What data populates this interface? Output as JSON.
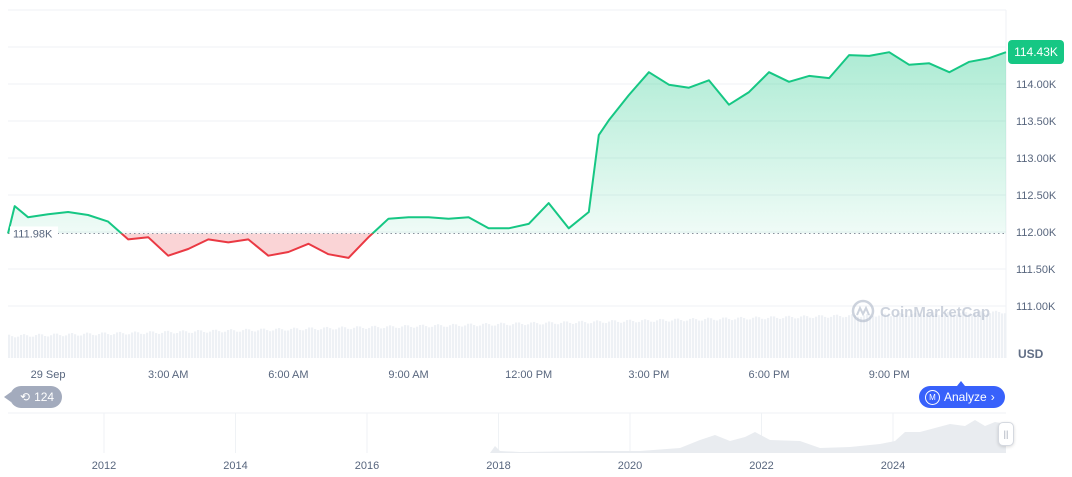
{
  "chart_data": {
    "type": "area",
    "currency_label": "USD",
    "current_price_label": "114.43K",
    "baseline_label": "111.98K",
    "baseline": 111.98,
    "ylim": [
      110.7,
      114.85
    ],
    "y_ticks": [
      "111.00K",
      "111.50K",
      "112.00K",
      "112.50K",
      "113.00K",
      "113.50K",
      "114.00K"
    ],
    "y_tick_values": [
      111.0,
      111.5,
      112.0,
      112.5,
      113.0,
      113.5,
      114.0
    ],
    "x_ticks": [
      "29 Sep",
      "3:00 AM",
      "6:00 AM",
      "9:00 AM",
      "12:00 PM",
      "3:00 PM",
      "6:00 PM",
      "9:00 PM"
    ],
    "x_tick_times": [
      "29 Sep 00:00",
      "29 Sep 03:00",
      "29 Sep 06:00",
      "29 Sep 09:00",
      "29 Sep 12:00",
      "29 Sep 15:00",
      "29 Sep 18:00",
      "29 Sep 21:00"
    ],
    "x_range": [
      "28 Sep 23:00",
      "29 Sep 23:55"
    ],
    "series": [
      {
        "points": [
          [
            "28 Sep 23:00",
            111.98
          ],
          [
            "28 Sep 23:10",
            112.35
          ],
          [
            "28 Sep 23:30",
            112.2
          ],
          [
            "29 Sep 00:00",
            112.24
          ],
          [
            "29 Sep 00:30",
            112.27
          ],
          [
            "29 Sep 01:00",
            112.23
          ],
          [
            "29 Sep 01:30",
            112.14
          ],
          [
            "29 Sep 02:00",
            111.9
          ],
          [
            "29 Sep 02:30",
            111.93
          ],
          [
            "29 Sep 03:00",
            111.68
          ],
          [
            "29 Sep 03:30",
            111.77
          ],
          [
            "29 Sep 04:00",
            111.9
          ],
          [
            "29 Sep 04:30",
            111.86
          ],
          [
            "29 Sep 05:00",
            111.9
          ],
          [
            "29 Sep 05:30",
            111.68
          ],
          [
            "29 Sep 06:00",
            111.73
          ],
          [
            "29 Sep 06:30",
            111.84
          ],
          [
            "29 Sep 07:00",
            111.7
          ],
          [
            "29 Sep 07:30",
            111.65
          ],
          [
            "29 Sep 08:00",
            111.93
          ],
          [
            "29 Sep 08:30",
            112.18
          ],
          [
            "29 Sep 09:00",
            112.2
          ],
          [
            "29 Sep 09:30",
            112.2
          ],
          [
            "29 Sep 10:00",
            112.18
          ],
          [
            "29 Sep 10:30",
            112.2
          ],
          [
            "29 Sep 11:00",
            112.05
          ],
          [
            "29 Sep 11:30",
            112.05
          ],
          [
            "29 Sep 12:00",
            112.11
          ],
          [
            "29 Sep 12:30",
            112.39
          ],
          [
            "29 Sep 13:00",
            112.05
          ],
          [
            "29 Sep 13:30",
            112.27
          ],
          [
            "29 Sep 13:45",
            113.31
          ],
          [
            "29 Sep 14:00",
            113.51
          ],
          [
            "29 Sep 14:30",
            113.85
          ],
          [
            "29 Sep 15:00",
            114.16
          ],
          [
            "29 Sep 15:30",
            113.99
          ],
          [
            "29 Sep 16:00",
            113.95
          ],
          [
            "29 Sep 16:30",
            114.05
          ],
          [
            "29 Sep 17:00",
            113.72
          ],
          [
            "29 Sep 17:30",
            113.89
          ],
          [
            "29 Sep 18:00",
            114.16
          ],
          [
            "29 Sep 18:30",
            114.03
          ],
          [
            "29 Sep 19:00",
            114.11
          ],
          [
            "29 Sep 19:30",
            114.08
          ],
          [
            "29 Sep 20:00",
            114.39
          ],
          [
            "29 Sep 20:30",
            114.38
          ],
          [
            "29 Sep 21:00",
            114.43
          ],
          [
            "29 Sep 21:30",
            114.26
          ],
          [
            "29 Sep 22:00",
            114.28
          ],
          [
            "29 Sep 22:30",
            114.16
          ],
          [
            "29 Sep 23:00",
            114.3
          ],
          [
            "29 Sep 23:30",
            114.35
          ],
          [
            "29 Sep 23:55",
            114.43
          ]
        ]
      }
    ],
    "grid": true,
    "navigator": {
      "x_ticks": [
        "2012",
        "2014",
        "2016",
        "2018",
        "2020",
        "2022",
        "2024"
      ]
    }
  },
  "colors": {
    "up": "#16c784",
    "down": "#ea3943",
    "analyze": "#3861fb",
    "history": "#a3abbd"
  },
  "watermark": "CoinMarketCap",
  "history_badge": {
    "icon": "history-icon",
    "count": "124"
  },
  "analyze_button": {
    "icon": "cmc-logo-icon",
    "label": "Analyze",
    "chevron": "›"
  }
}
